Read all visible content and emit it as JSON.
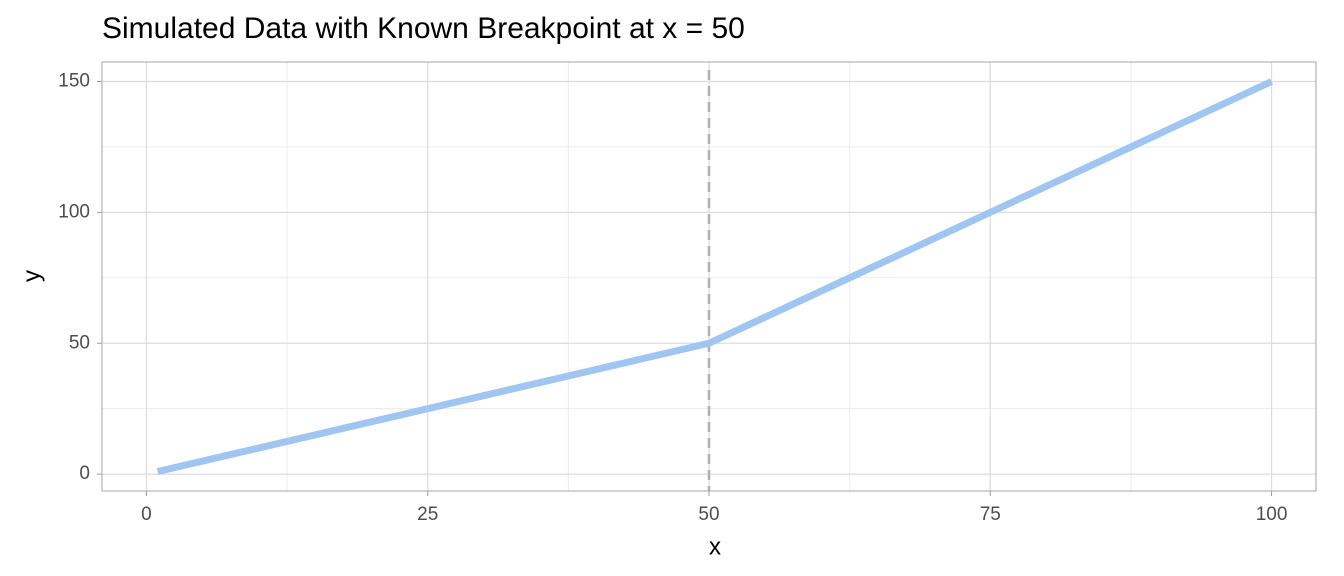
{
  "chart_data": {
    "type": "line",
    "title": "Simulated Data with Known Breakpoint at x = 50",
    "xlabel": "x",
    "ylabel": "y",
    "x": [
      1,
      50,
      100
    ],
    "series": [
      {
        "name": "y",
        "color": "#9fc5f0",
        "values": [
          1,
          50,
          150
        ]
      }
    ],
    "xlim": [
      -3.95,
      103.95
    ],
    "ylim": [
      -6.45,
      157.45
    ],
    "xticks": [
      0,
      25,
      50,
      75,
      100
    ],
    "yticks": [
      0,
      50,
      100,
      150
    ],
    "x_minor_grid": [
      12.5,
      37.5,
      62.5,
      87.5
    ],
    "y_minor_grid": [
      25,
      75,
      125
    ],
    "vline": 50,
    "grid": true
  }
}
